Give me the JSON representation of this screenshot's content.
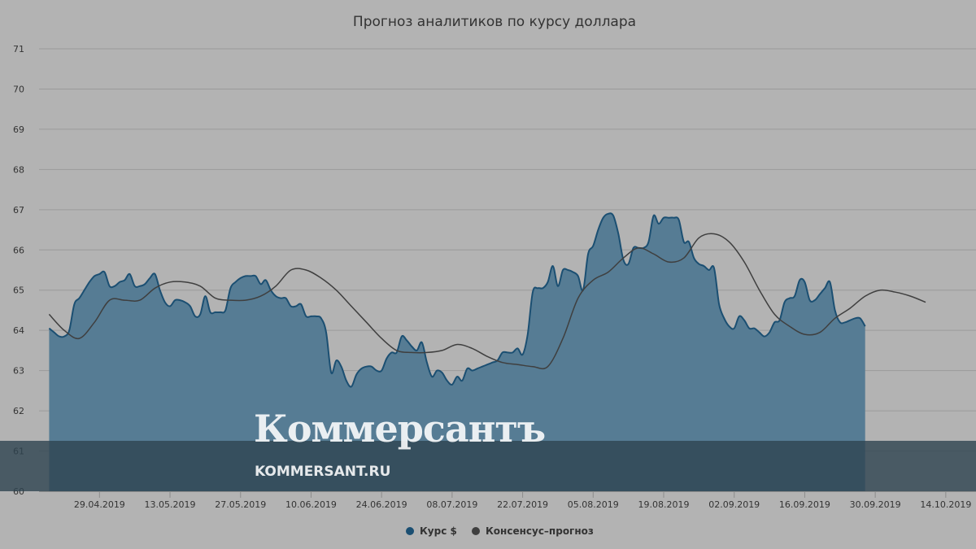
{
  "chart_data": {
    "type": "area",
    "title": "Прогноз аналитиков по курсу доллара",
    "xlabel": "",
    "ylabel": "",
    "ylim": [
      60,
      71
    ],
    "yticks": [
      60,
      61,
      62,
      63,
      64,
      65,
      66,
      67,
      68,
      69,
      70,
      71
    ],
    "xlim": [
      "2019-04-17",
      "2019-10-20"
    ],
    "xticks": [
      "2019-04-29",
      "2019-05-13",
      "2019-05-27",
      "2019-06-10",
      "2019-06-24",
      "2019-07-08",
      "2019-07-22",
      "2019-08-05",
      "2019-08-19",
      "2019-09-02",
      "2019-09-16",
      "2019-09-30",
      "2019-10-14"
    ],
    "xtick_labels": [
      "29.04.2019",
      "13.05.2019",
      "27.05.2019",
      "10.06.2019",
      "24.06.2019",
      "08.07.2019",
      "22.07.2019",
      "05.08.2019",
      "19.08.2019",
      "02.09.2019",
      "16.09.2019",
      "30.09.2019",
      "14.10.2019"
    ],
    "grid": true,
    "legend": "bottom-center",
    "series": [
      {
        "name": "Курс $",
        "type": "area",
        "color": "#1b4f72",
        "fill": "#567c94",
        "points": [
          [
            "2019-04-19",
            64.05
          ],
          [
            "2019-04-20",
            63.95
          ],
          [
            "2019-04-21",
            63.85
          ],
          [
            "2019-04-22",
            63.85
          ],
          [
            "2019-04-23",
            64.0
          ],
          [
            "2019-04-24",
            64.65
          ],
          [
            "2019-04-25",
            64.8
          ],
          [
            "2019-04-26",
            65.0
          ],
          [
            "2019-04-27",
            65.2
          ],
          [
            "2019-04-28",
            65.35
          ],
          [
            "2019-04-29",
            65.4
          ],
          [
            "2019-04-30",
            65.45
          ],
          [
            "2019-05-01",
            65.1
          ],
          [
            "2019-05-02",
            65.1
          ],
          [
            "2019-05-03",
            65.2
          ],
          [
            "2019-05-04",
            65.25
          ],
          [
            "2019-05-05",
            65.4
          ],
          [
            "2019-05-06",
            65.1
          ],
          [
            "2019-05-07",
            65.1
          ],
          [
            "2019-05-08",
            65.15
          ],
          [
            "2019-05-09",
            65.3
          ],
          [
            "2019-05-10",
            65.4
          ],
          [
            "2019-05-11",
            65.0
          ],
          [
            "2019-05-12",
            64.7
          ],
          [
            "2019-05-13",
            64.6
          ],
          [
            "2019-05-14",
            64.75
          ],
          [
            "2019-05-15",
            64.75
          ],
          [
            "2019-05-16",
            64.7
          ],
          [
            "2019-05-17",
            64.6
          ],
          [
            "2019-05-18",
            64.35
          ],
          [
            "2019-05-19",
            64.4
          ],
          [
            "2019-05-20",
            64.85
          ],
          [
            "2019-05-21",
            64.45
          ],
          [
            "2019-05-22",
            64.45
          ],
          [
            "2019-05-23",
            64.45
          ],
          [
            "2019-05-24",
            64.5
          ],
          [
            "2019-05-25",
            65.05
          ],
          [
            "2019-05-26",
            65.2
          ],
          [
            "2019-05-27",
            65.3
          ],
          [
            "2019-05-28",
            65.35
          ],
          [
            "2019-05-29",
            65.35
          ],
          [
            "2019-05-30",
            65.35
          ],
          [
            "2019-05-31",
            65.15
          ],
          [
            "2019-06-01",
            65.25
          ],
          [
            "2019-06-02",
            65.0
          ],
          [
            "2019-06-03",
            64.85
          ],
          [
            "2019-06-04",
            64.8
          ],
          [
            "2019-06-05",
            64.8
          ],
          [
            "2019-06-06",
            64.6
          ],
          [
            "2019-06-07",
            64.6
          ],
          [
            "2019-06-08",
            64.65
          ],
          [
            "2019-06-09",
            64.35
          ],
          [
            "2019-06-10",
            64.35
          ],
          [
            "2019-06-11",
            64.35
          ],
          [
            "2019-06-12",
            64.3
          ],
          [
            "2019-06-13",
            63.95
          ],
          [
            "2019-06-14",
            62.95
          ],
          [
            "2019-06-15",
            63.25
          ],
          [
            "2019-06-16",
            63.1
          ],
          [
            "2019-06-17",
            62.75
          ],
          [
            "2019-06-18",
            62.6
          ],
          [
            "2019-06-19",
            62.9
          ],
          [
            "2019-06-20",
            63.05
          ],
          [
            "2019-06-21",
            63.1
          ],
          [
            "2019-06-22",
            63.1
          ],
          [
            "2019-06-23",
            63.0
          ],
          [
            "2019-06-24",
            63.0
          ],
          [
            "2019-06-25",
            63.3
          ],
          [
            "2019-06-26",
            63.45
          ],
          [
            "2019-06-27",
            63.45
          ],
          [
            "2019-06-28",
            63.85
          ],
          [
            "2019-06-29",
            63.75
          ],
          [
            "2019-06-30",
            63.6
          ],
          [
            "2019-07-01",
            63.5
          ],
          [
            "2019-07-02",
            63.7
          ],
          [
            "2019-07-03",
            63.2
          ],
          [
            "2019-07-04",
            62.85
          ],
          [
            "2019-07-05",
            63.0
          ],
          [
            "2019-07-06",
            62.95
          ],
          [
            "2019-07-07",
            62.75
          ],
          [
            "2019-07-08",
            62.65
          ],
          [
            "2019-07-09",
            62.85
          ],
          [
            "2019-07-10",
            62.75
          ],
          [
            "2019-07-11",
            63.05
          ],
          [
            "2019-07-12",
            63.0
          ],
          [
            "2019-07-13",
            63.05
          ],
          [
            "2019-07-14",
            63.1
          ],
          [
            "2019-07-15",
            63.15
          ],
          [
            "2019-07-16",
            63.2
          ],
          [
            "2019-07-17",
            63.25
          ],
          [
            "2019-07-18",
            63.45
          ],
          [
            "2019-07-19",
            63.45
          ],
          [
            "2019-07-20",
            63.45
          ],
          [
            "2019-07-21",
            63.55
          ],
          [
            "2019-07-22",
            63.4
          ],
          [
            "2019-07-23",
            63.9
          ],
          [
            "2019-07-24",
            64.95
          ],
          [
            "2019-07-25",
            65.05
          ],
          [
            "2019-07-26",
            65.05
          ],
          [
            "2019-07-27",
            65.2
          ],
          [
            "2019-07-28",
            65.6
          ],
          [
            "2019-07-29",
            65.1
          ],
          [
            "2019-07-30",
            65.5
          ],
          [
            "2019-07-31",
            65.5
          ],
          [
            "2019-08-01",
            65.45
          ],
          [
            "2019-08-02",
            65.35
          ],
          [
            "2019-08-03",
            65.0
          ],
          [
            "2019-08-04",
            65.9
          ],
          [
            "2019-08-05",
            66.1
          ],
          [
            "2019-08-06",
            66.5
          ],
          [
            "2019-08-07",
            66.8
          ],
          [
            "2019-08-08",
            66.9
          ],
          [
            "2019-08-09",
            66.85
          ],
          [
            "2019-08-10",
            66.4
          ],
          [
            "2019-08-11",
            65.75
          ],
          [
            "2019-08-12",
            65.65
          ],
          [
            "2019-08-13",
            66.05
          ],
          [
            "2019-08-14",
            66.05
          ],
          [
            "2019-08-15",
            66.05
          ],
          [
            "2019-08-16",
            66.2
          ],
          [
            "2019-08-17",
            66.85
          ],
          [
            "2019-08-18",
            66.65
          ],
          [
            "2019-08-19",
            66.8
          ],
          [
            "2019-08-20",
            66.8
          ],
          [
            "2019-08-21",
            66.8
          ],
          [
            "2019-08-22",
            66.75
          ],
          [
            "2019-08-23",
            66.2
          ],
          [
            "2019-08-24",
            66.2
          ],
          [
            "2019-08-25",
            65.8
          ],
          [
            "2019-08-26",
            65.65
          ],
          [
            "2019-08-27",
            65.6
          ],
          [
            "2019-08-28",
            65.5
          ],
          [
            "2019-08-29",
            65.55
          ],
          [
            "2019-08-30",
            64.65
          ],
          [
            "2019-08-31",
            64.3
          ],
          [
            "2019-09-01",
            64.1
          ],
          [
            "2019-09-02",
            64.05
          ],
          [
            "2019-09-03",
            64.35
          ],
          [
            "2019-09-04",
            64.25
          ],
          [
            "2019-09-05",
            64.05
          ],
          [
            "2019-09-06",
            64.05
          ],
          [
            "2019-09-07",
            63.95
          ],
          [
            "2019-09-08",
            63.85
          ],
          [
            "2019-09-09",
            63.95
          ],
          [
            "2019-09-10",
            64.2
          ],
          [
            "2019-09-11",
            64.25
          ],
          [
            "2019-09-12",
            64.7
          ],
          [
            "2019-09-13",
            64.8
          ],
          [
            "2019-09-14",
            64.85
          ],
          [
            "2019-09-15",
            65.25
          ],
          [
            "2019-09-16",
            65.2
          ],
          [
            "2019-09-17",
            64.75
          ],
          [
            "2019-09-18",
            64.75
          ],
          [
            "2019-09-19",
            64.9
          ],
          [
            "2019-09-20",
            65.05
          ],
          [
            "2019-09-21",
            65.2
          ],
          [
            "2019-09-22",
            64.5
          ],
          [
            "2019-09-23",
            64.2
          ],
          [
            "2019-09-24",
            64.2
          ],
          [
            "2019-09-25",
            64.25
          ],
          [
            "2019-09-26",
            64.3
          ],
          [
            "2019-09-27",
            64.3
          ],
          [
            "2019-09-28",
            64.1
          ]
        ]
      },
      {
        "name": "Консенсус–прогноз",
        "type": "line",
        "color": "#3f3f3f",
        "points": [
          [
            "2019-04-19",
            64.4
          ],
          [
            "2019-04-22",
            64.0
          ],
          [
            "2019-04-25",
            63.8
          ],
          [
            "2019-04-28",
            64.2
          ],
          [
            "2019-05-01",
            64.75
          ],
          [
            "2019-05-04",
            64.75
          ],
          [
            "2019-05-07",
            64.75
          ],
          [
            "2019-05-10",
            65.05
          ],
          [
            "2019-05-13",
            65.2
          ],
          [
            "2019-05-16",
            65.2
          ],
          [
            "2019-05-19",
            65.1
          ],
          [
            "2019-05-22",
            64.8
          ],
          [
            "2019-05-25",
            64.75
          ],
          [
            "2019-05-28",
            64.75
          ],
          [
            "2019-05-31",
            64.85
          ],
          [
            "2019-06-03",
            65.1
          ],
          [
            "2019-06-06",
            65.5
          ],
          [
            "2019-06-09",
            65.5
          ],
          [
            "2019-06-12",
            65.3
          ],
          [
            "2019-06-15",
            65.0
          ],
          [
            "2019-06-18",
            64.6
          ],
          [
            "2019-06-21",
            64.2
          ],
          [
            "2019-06-24",
            63.8
          ],
          [
            "2019-06-27",
            63.5
          ],
          [
            "2019-06-30",
            63.45
          ],
          [
            "2019-07-03",
            63.45
          ],
          [
            "2019-07-06",
            63.5
          ],
          [
            "2019-07-09",
            63.65
          ],
          [
            "2019-07-12",
            63.55
          ],
          [
            "2019-07-15",
            63.35
          ],
          [
            "2019-07-18",
            63.2
          ],
          [
            "2019-07-21",
            63.15
          ],
          [
            "2019-07-24",
            63.1
          ],
          [
            "2019-07-27",
            63.1
          ],
          [
            "2019-07-30",
            63.8
          ],
          [
            "2019-08-02",
            64.8
          ],
          [
            "2019-08-05",
            65.25
          ],
          [
            "2019-08-08",
            65.45
          ],
          [
            "2019-08-11",
            65.8
          ],
          [
            "2019-08-14",
            66.05
          ],
          [
            "2019-08-17",
            65.9
          ],
          [
            "2019-08-20",
            65.7
          ],
          [
            "2019-08-23",
            65.8
          ],
          [
            "2019-08-26",
            66.3
          ],
          [
            "2019-08-29",
            66.4
          ],
          [
            "2019-09-01",
            66.2
          ],
          [
            "2019-09-04",
            65.7
          ],
          [
            "2019-09-07",
            65.0
          ],
          [
            "2019-09-10",
            64.4
          ],
          [
            "2019-09-13",
            64.1
          ],
          [
            "2019-09-16",
            63.9
          ],
          [
            "2019-09-19",
            63.95
          ],
          [
            "2019-09-22",
            64.3
          ],
          [
            "2019-09-25",
            64.55
          ],
          [
            "2019-09-28",
            64.85
          ],
          [
            "2019-10-01",
            65.0
          ],
          [
            "2019-10-04",
            64.95
          ],
          [
            "2019-10-07",
            64.85
          ],
          [
            "2019-10-10",
            64.7
          ]
        ]
      }
    ]
  },
  "watermark": {
    "logo_text": "Коммерсантъ",
    "site_text": "KOMMERSANT.RU"
  }
}
